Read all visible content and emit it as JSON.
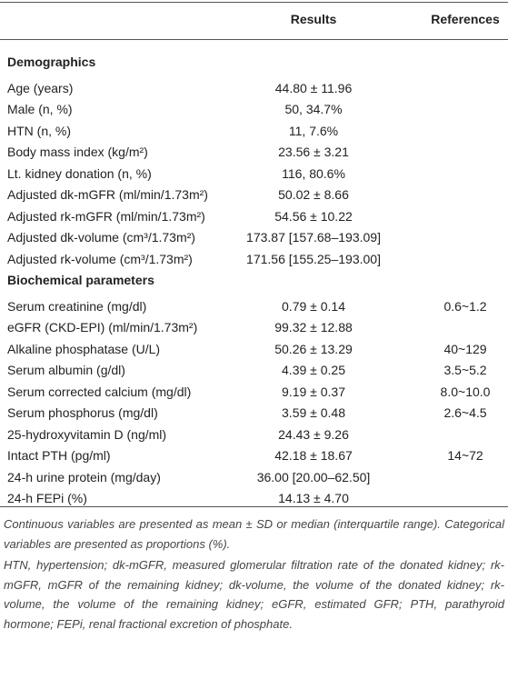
{
  "table": {
    "header": [
      "Results",
      "References"
    ],
    "sections": [
      {
        "title": "Demographics",
        "rows": [
          [
            "Age (years)",
            "44.80 ± 11.96"
          ],
          [
            "Male (n, %)",
            "50, 34.7%"
          ],
          [
            "HTN (n, %)",
            "11, 7.6%"
          ],
          [
            "Body mass index (kg/m²)",
            "23.56 ± 3.21"
          ],
          [
            "Lt. kidney donation (n, %)",
            "116, 80.6%"
          ],
          [
            "Adjusted dk-mGFR (ml/min/1.73m²)",
            "50.02 ± 8.66"
          ],
          [
            "Adjusted rk-mGFR (ml/min/1.73m²)",
            "54.56 ± 10.22"
          ],
          [
            "Adjusted dk-volume (cm³/1.73m²)",
            "173.87 [157.68–193.09]"
          ],
          [
            "Adjusted rk-volume (cm³/1.73m²)",
            "171.56 [155.25–193.00]"
          ]
        ]
      },
      {
        "title": "Biochemical parameters",
        "rows": [
          [
            "Serum creatinine (mg/dl)",
            "0.79 ± 0.14",
            "0.6~1.2"
          ],
          [
            "eGFR (CKD-EPI) (ml/min/1.73m²)",
            "99.32 ± 12.88"
          ],
          [
            "Alkaline phosphatase (U/L)",
            "50.26 ± 13.29",
            "40~129"
          ],
          [
            "Serum albumin (g/dl)",
            "4.39 ± 0.25",
            "3.5~5.2"
          ],
          [
            "Serum corrected calcium (mg/dl)",
            "9.19 ± 0.37",
            "8.0~10.0"
          ],
          [
            "Serum phosphorus (mg/dl)",
            "3.59 ± 0.48",
            "2.6~4.5"
          ],
          [
            "25-hydroxyvitamin D (ng/ml)",
            "24.43 ± 9.26"
          ],
          [
            "Intact PTH (pg/ml)",
            "42.18 ± 18.67",
            "14~72"
          ],
          [
            "24-h urine protein (mg/day)",
            "36.00 [20.00–62.50]"
          ],
          [
            "24-h FEPi (%)",
            "14.13 ± 4.70"
          ]
        ]
      }
    ],
    "footnotes": [
      "Continuous variables are presented as mean ± SD or median (interquartile range). Categorical variables are presented as proportions (%).",
      "HTN, hypertension; dk-mGFR, measured glomerular filtration rate of the donated kidney; rk-mGFR, mGFR of the remaining kidney; dk-volume, the volume of the donated kidney; rk-volume, the volume of the remaining kidney; eGFR, estimated GFR; PTH, parathyroid hormone; FEPi, renal fractional excretion of phosphate."
    ]
  }
}
